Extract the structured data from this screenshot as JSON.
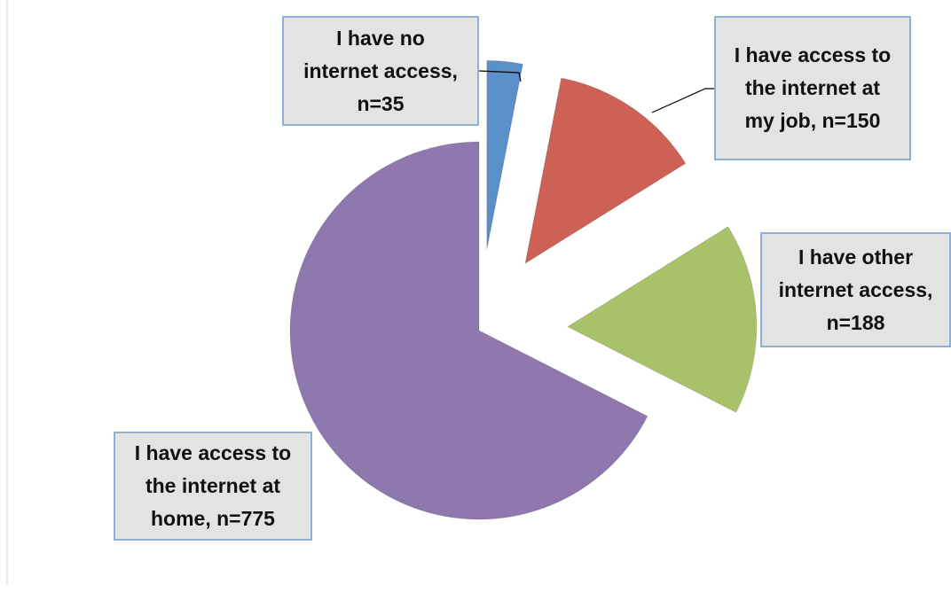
{
  "chart_data": {
    "type": "pie",
    "values": [
      35,
      150,
      188,
      775
    ],
    "value_labels": [
      "I have no internet access, n=35",
      "I have access to the internet at my job, n=150",
      "I have other internet access, n=188",
      "I have access to the internet at home, n=775"
    ],
    "colors": [
      "#5b8fc9",
      "#cd6155",
      "#a9c26a",
      "#8e78ae"
    ]
  }
}
